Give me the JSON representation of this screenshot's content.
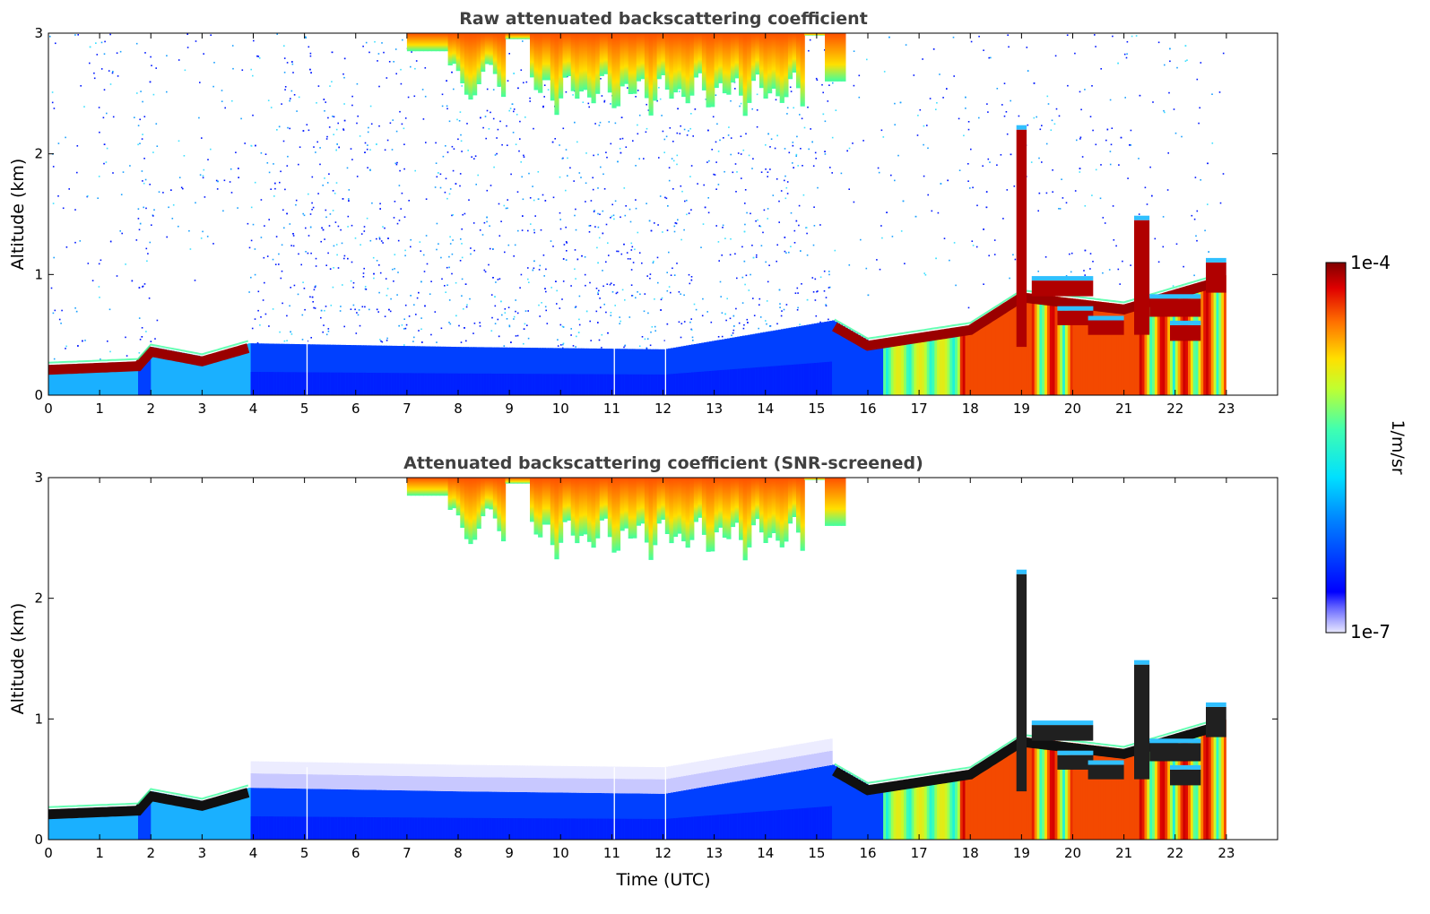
{
  "chart_data": [
    {
      "type": "heatmap",
      "title": "Raw attenuated backscattering coefficient",
      "xlabel": "",
      "ylabel": "Altitude (km)",
      "xlim": [
        0,
        24
      ],
      "ylim": [
        0,
        3
      ],
      "x_ticks": [
        "0",
        "1",
        "2",
        "3",
        "4",
        "5",
        "6",
        "7",
        "8",
        "9",
        "10",
        "11",
        "12",
        "13",
        "14",
        "15",
        "16",
        "17",
        "18",
        "19",
        "20",
        "21",
        "22",
        "23"
      ],
      "y_ticks": [
        "0",
        "1",
        "2",
        "3"
      ],
      "data_end_time": 23,
      "boundary_layer_top_km": [
        {
          "t": 0,
          "alt": 0.25
        },
        {
          "t": 1.75,
          "alt": 0.28
        },
        {
          "t": 2,
          "alt": 0.4
        },
        {
          "t": 3,
          "alt": 0.32
        },
        {
          "t": 3.9,
          "alt": 0.43
        },
        {
          "t": 8,
          "alt": 0.4
        },
        {
          "t": 12,
          "alt": 0.38
        },
        {
          "t": 15.3,
          "alt": 0.62
        },
        {
          "t": 16,
          "alt": 0.45
        },
        {
          "t": 18,
          "alt": 0.58
        },
        {
          "t": 19,
          "alt": 0.85
        },
        {
          "t": 21,
          "alt": 0.75
        },
        {
          "t": 23,
          "alt": 1.0
        }
      ],
      "cloud_features": [
        {
          "type": "cirrus",
          "t_start": 7,
          "t_end": 15.5,
          "alt_bottom_min_km": 2.4,
          "alt_top_km": 3
        }
      ]
    },
    {
      "type": "heatmap",
      "title": "Attenuated backscattering coefficient (SNR-screened)",
      "xlabel": "Time (UTC)",
      "ylabel": "Altitude (km)",
      "xlim": [
        0,
        24
      ],
      "ylim": [
        0,
        3
      ],
      "x_ticks": [
        "0",
        "1",
        "2",
        "3",
        "4",
        "5",
        "6",
        "7",
        "8",
        "9",
        "10",
        "11",
        "12",
        "13",
        "14",
        "15",
        "16",
        "17",
        "18",
        "19",
        "20",
        "21",
        "22",
        "23"
      ],
      "y_ticks": [
        "0",
        "1",
        "2",
        "3"
      ],
      "data_end_time": 23
    }
  ],
  "colorbar": {
    "label": "1/m/sr",
    "max_label": "1e-4",
    "min_label": "1e-7",
    "scale": "log",
    "colormap": "jet",
    "low_end_colors": [
      "#e8e8ff",
      "#c8c8ff",
      "#a0a0ff",
      "#7070ff"
    ]
  }
}
